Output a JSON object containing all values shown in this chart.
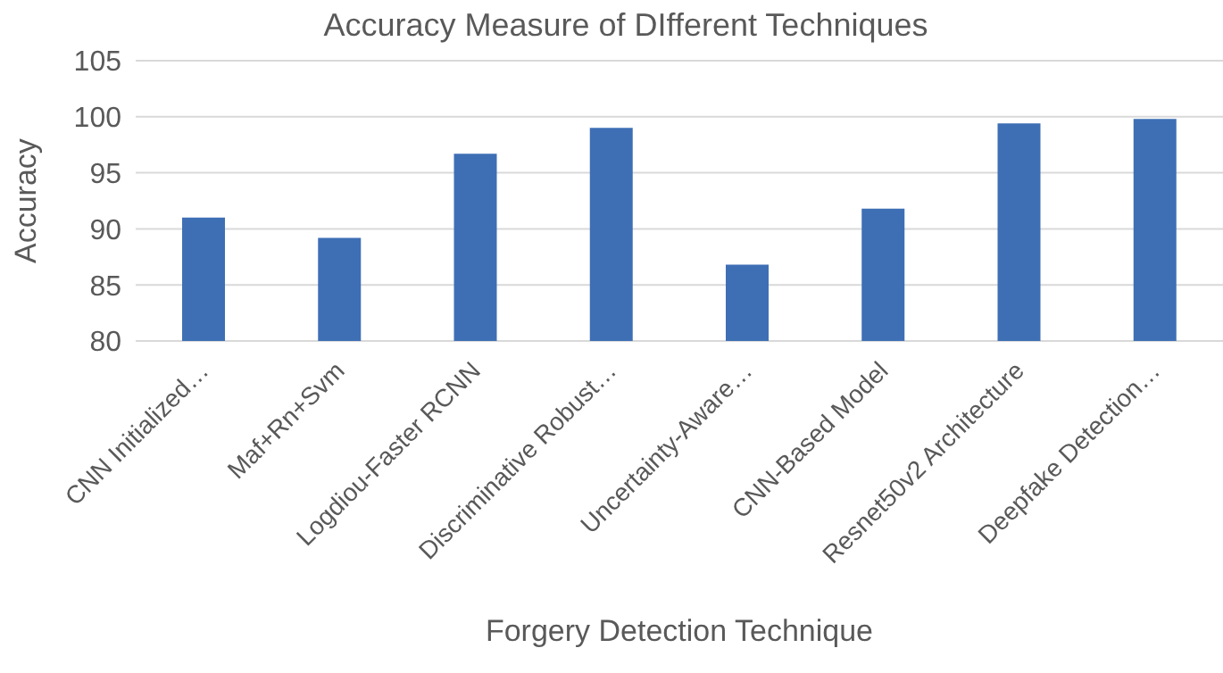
{
  "chart_data": {
    "type": "bar",
    "title": "Accuracy Measure of DIfferent Techniques",
    "xlabel": "Forgery Detection Technique",
    "ylabel": "Accuracy",
    "categories": [
      "CNN Initialized…",
      "Maf+Rn+Svm",
      "Logdiou-Faster RCNN",
      "Discriminative Robust…",
      "Uncertainty-Aware…",
      "CNN-Based Model",
      "Resnet50v2 Architecture",
      "Deepfake Detection…"
    ],
    "values": [
      91.0,
      89.2,
      96.7,
      99.0,
      86.8,
      91.8,
      99.4,
      99.8
    ],
    "color": "#3e6fb5",
    "ylim": [
      80,
      105
    ],
    "yticks": [
      80,
      85,
      90,
      95,
      100,
      105
    ],
    "grid": "y"
  }
}
